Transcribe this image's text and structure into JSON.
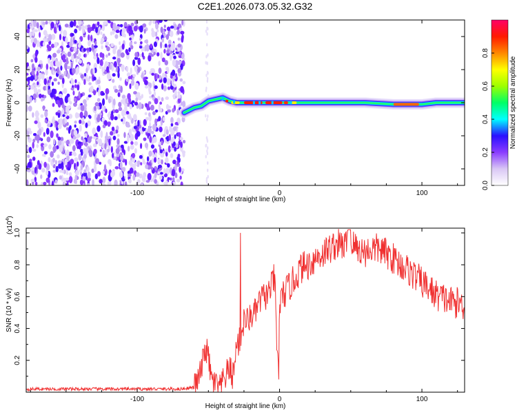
{
  "title": "C2E1.2026.073.05.32.G32",
  "colors": {
    "snr_line": "#f03030",
    "background": "#ffffff",
    "axis": "#000000"
  },
  "chart_data": [
    {
      "type": "heatmap",
      "name": "spectrogram",
      "title": "C2E1.2026.073.05.32.G32",
      "xlabel": "Height of straight line (km)",
      "ylabel": "Frequency (Hz)",
      "xlim": [
        -178,
        130
      ],
      "ylim": [
        -50,
        50
      ],
      "xticks": [
        -100,
        0,
        100
      ],
      "xtick_labels": [
        "-100",
        "0",
        "100"
      ],
      "yticks": [
        -40,
        -20,
        0,
        20,
        40
      ],
      "ytick_labels": [
        "-40",
        "-20",
        "0",
        "20",
        "40"
      ],
      "colorbar": {
        "label": "Normalized spectral amplitude",
        "range": [
          0.0,
          1.0
        ],
        "ticks": [
          0.0,
          0.2,
          0.4,
          0.6,
          0.8
        ],
        "tick_labels": [
          "0.0",
          "0.2",
          "0.4",
          "0.6",
          "0.8"
        ],
        "colormap": [
          "#ffffff",
          "#d9c7f5",
          "#8a3cff",
          "#2a10ff",
          "#00ffff",
          "#00ff66",
          "#9dff00",
          "#ffff00",
          "#ff8800",
          "#ff1a00",
          "#ff0066"
        ]
      },
      "features": [
        {
          "description": "noise",
          "x_range": [
            -178,
            -67
          ],
          "freq_range": [
            -50,
            50
          ],
          "amplitude": 0.2
        },
        {
          "description": "carrier track",
          "points": [
            [
              -67,
              -6
            ],
            [
              -60,
              -3
            ],
            [
              -55,
              -2
            ],
            [
              -50,
              1
            ],
            [
              -45,
              2
            ],
            [
              -40,
              3
            ],
            [
              -35,
              1
            ],
            [
              -30,
              0
            ],
            [
              -20,
              0
            ],
            [
              -10,
              0
            ],
            [
              0,
              0
            ],
            [
              20,
              0
            ],
            [
              40,
              0
            ],
            [
              60,
              0
            ],
            [
              80,
              -1
            ],
            [
              100,
              -1
            ],
            [
              110,
              0
            ],
            [
              130,
              0
            ]
          ]
        }
      ]
    },
    {
      "type": "line",
      "name": "snr",
      "xlabel": "Height of straight line (km)",
      "ylabel": "SNR (10 * v/v)",
      "y_scale_label": "(x10",
      "y_scale_exponent": "4",
      "xlim": [
        -178,
        130
      ],
      "ylim": [
        0.0,
        1.03
      ],
      "xticks": [
        -100,
        0,
        100
      ],
      "xtick_labels": [
        "-100",
        "0",
        "100"
      ],
      "yticks": [
        0.2,
        0.4,
        0.6,
        0.8,
        1.0
      ],
      "ytick_labels": [
        "0.2",
        "0.4",
        "0.6",
        "0.8",
        "1.0"
      ],
      "series": [
        {
          "name": "SNR",
          "x": [
            -178,
            -160,
            -140,
            -120,
            -100,
            -80,
            -70,
            -60,
            -57,
            -55,
            -52,
            -50,
            -48,
            -45,
            -42,
            -40,
            -37,
            -35,
            -33,
            -31,
            -30,
            -29,
            -27,
            -25,
            -22,
            -20,
            -17,
            -15,
            -12,
            -10,
            -8,
            -6,
            -4,
            -3,
            -2,
            -1,
            0,
            2,
            5,
            10,
            15,
            20,
            25,
            30,
            35,
            40,
            45,
            50,
            55,
            60,
            65,
            70,
            75,
            80,
            85,
            90,
            95,
            100,
            105,
            110,
            115,
            120,
            125,
            130
          ],
          "values": [
            0.02,
            0.02,
            0.02,
            0.02,
            0.02,
            0.02,
            0.02,
            0.03,
            0.08,
            0.14,
            0.28,
            0.22,
            0.08,
            0.05,
            0.02,
            0.06,
            0.12,
            0.15,
            0.1,
            0.2,
            0.35,
            0.3,
            0.35,
            0.45,
            0.45,
            0.48,
            0.5,
            0.55,
            0.6,
            0.6,
            0.62,
            0.66,
            0.72,
            0.62,
            0.3,
            0.15,
            0.55,
            0.6,
            0.64,
            0.7,
            0.78,
            0.8,
            0.84,
            0.87,
            0.9,
            0.93,
            0.92,
            0.94,
            0.9,
            0.88,
            0.9,
            0.9,
            0.87,
            0.84,
            0.8,
            0.77,
            0.73,
            0.69,
            0.65,
            0.61,
            0.59,
            0.57,
            0.56,
            0.55
          ]
        }
      ]
    }
  ]
}
